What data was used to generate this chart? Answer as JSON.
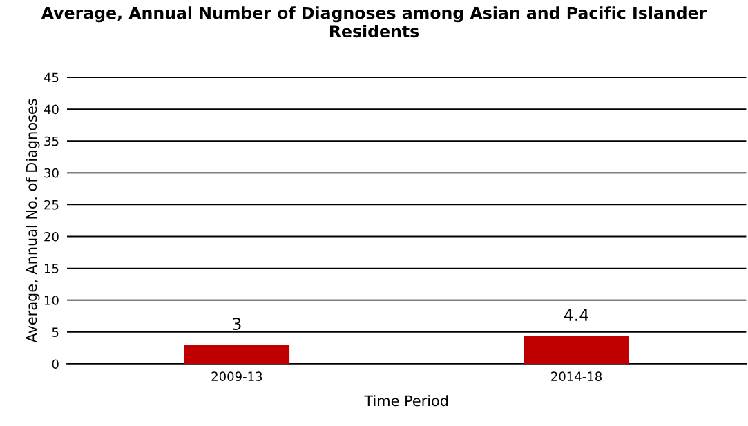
{
  "chart_data": {
    "type": "bar",
    "title": "Average, Annual Number of Diagnoses among Asian and Pacific Islander Residents",
    "xlabel": "Time Period",
    "ylabel": "Average, Annual No. of Diagnoses",
    "categories": [
      "2009-13",
      "2014-18"
    ],
    "values": [
      3,
      4.4
    ],
    "color": "#c00000",
    "ylim": [
      0,
      45
    ],
    "yticks": [
      0,
      5,
      10,
      15,
      20,
      25,
      30,
      35,
      40,
      45
    ],
    "grid": "y",
    "data_labels": true
  }
}
